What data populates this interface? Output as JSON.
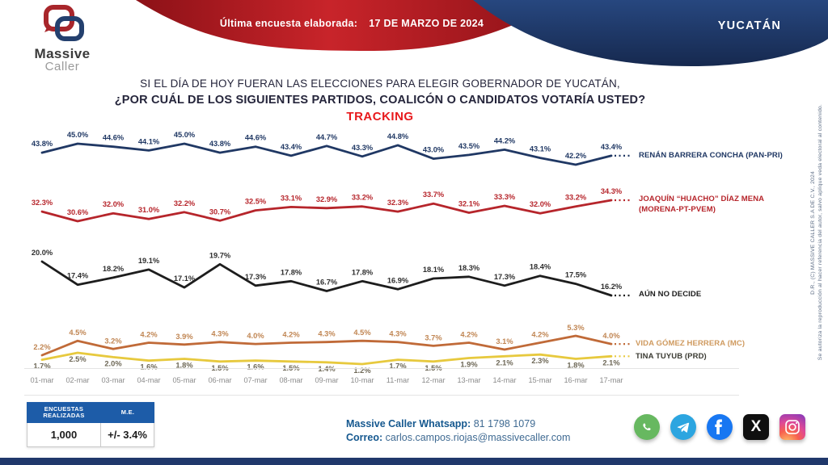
{
  "header": {
    "brand_top": "Massive",
    "brand_bottom": "Caller",
    "banner_label": "Última encuesta elaborada:",
    "banner_date": "17 DE MARZO DE 2024",
    "region": "YUCATÁN"
  },
  "title": {
    "line1": "SI EL DÍA DE HOY FUERAN LAS ELECCIONES PARA ELEGIR GOBERNADOR DE YUCATÁN,",
    "line2": "¿POR CUÁL DE LOS SIGUIENTES PARTIDOS, COALICÓN O CANDIDATOS VOTARÍA USTED?",
    "line3": "TRACKING"
  },
  "chart_data": {
    "type": "line",
    "title": "TRACKING",
    "grid": false,
    "legend_position": "right",
    "ylim": [
      0,
      50
    ],
    "x": [
      "01-mar",
      "02-mar",
      "03-mar",
      "04-mar",
      "05-mar",
      "06-mar",
      "07-mar",
      "08-mar",
      "09-mar",
      "10-mar",
      "11-mar",
      "12-mar",
      "13-mar",
      "14-mar",
      "15-mar",
      "16-mar",
      "17-mar"
    ],
    "series": [
      {
        "name": "RENÁN BARRERA CONCHA (PAN-PRI)",
        "legend_lines": [
          "RENÁN BARRERA CONCHA (PAN-PRI)"
        ],
        "color": "#203864",
        "label_color": "#203864",
        "legend_color": "#203864",
        "values": [
          43.8,
          45.0,
          44.6,
          44.1,
          45.0,
          43.8,
          44.6,
          43.4,
          44.7,
          43.3,
          44.8,
          43.0,
          43.5,
          44.2,
          43.1,
          42.2,
          43.4
        ]
      },
      {
        "name": "JOAQUÍN “HUACHO” DÍAZ MENA (MORENA-PT-PVEM)",
        "legend_lines": [
          "JOAQUÍN “HUACHO” DÍAZ MENA",
          "(MORENA-PT-PVEM)"
        ],
        "color": "#b6252b",
        "label_color": "#b6252b",
        "legend_color": "#b6252b",
        "values": [
          32.3,
          30.6,
          32.0,
          31.0,
          32.2,
          30.7,
          32.5,
          33.1,
          32.9,
          33.2,
          32.3,
          33.7,
          32.1,
          33.3,
          32.0,
          33.2,
          34.3
        ]
      },
      {
        "name": "AÚN NO DECIDE",
        "legend_lines": [
          "AÚN NO DECIDE"
        ],
        "color": "#1d1d1d",
        "label_color": "#2e2e2e",
        "legend_color": "#1c1c1c",
        "values": [
          20.0,
          17.4,
          18.2,
          19.1,
          17.1,
          19.7,
          17.3,
          17.8,
          16.7,
          17.8,
          16.9,
          18.1,
          18.3,
          17.3,
          18.4,
          17.5,
          16.2
        ]
      },
      {
        "name": "VIDA GÓMEZ HERRERA (MC)",
        "legend_lines": [
          "VIDA GÓMEZ HERRERA (MC)"
        ],
        "color": "#c06a38",
        "label_color": "#c08552",
        "legend_color": "#cf9a5f",
        "values": [
          2.2,
          4.5,
          3.2,
          4.2,
          3.9,
          4.3,
          4.0,
          4.2,
          4.3,
          4.5,
          4.3,
          3.7,
          4.2,
          3.1,
          4.2,
          5.3,
          4.0
        ]
      },
      {
        "name": "TINA TUYUB (PRD)",
        "legend_lines": [
          "TINA TUYUB (PRD)"
        ],
        "color": "#e7c93e",
        "label_color": "#6e6857",
        "legend_color": "#3b3b33",
        "values": [
          1.7,
          2.5,
          2.0,
          1.6,
          1.8,
          1.5,
          1.6,
          1.5,
          1.4,
          1.2,
          1.7,
          1.5,
          1.9,
          2.1,
          2.3,
          1.8,
          2.1
        ]
      }
    ]
  },
  "footer": {
    "table": {
      "col1_header": "ENCUESTAS REALIZADAS",
      "col2_header": "M.E.",
      "col1_value": "1,000",
      "col2_value": "+/- 3.4%"
    },
    "whatsapp_label": "Massive Caller Whatsapp:",
    "whatsapp_number": "81 1798 1079",
    "email_label": "Correo:",
    "email": "carlos.campos.riojas@massivecaller.com"
  },
  "copyright": {
    "line1": "D.R., (C) MASSIVE CALLER S.A DE C.V., 2024",
    "line2": "Se autoriza la reproducción al hacer referencia del autor, salvo aplique veda electoral al contenido."
  }
}
